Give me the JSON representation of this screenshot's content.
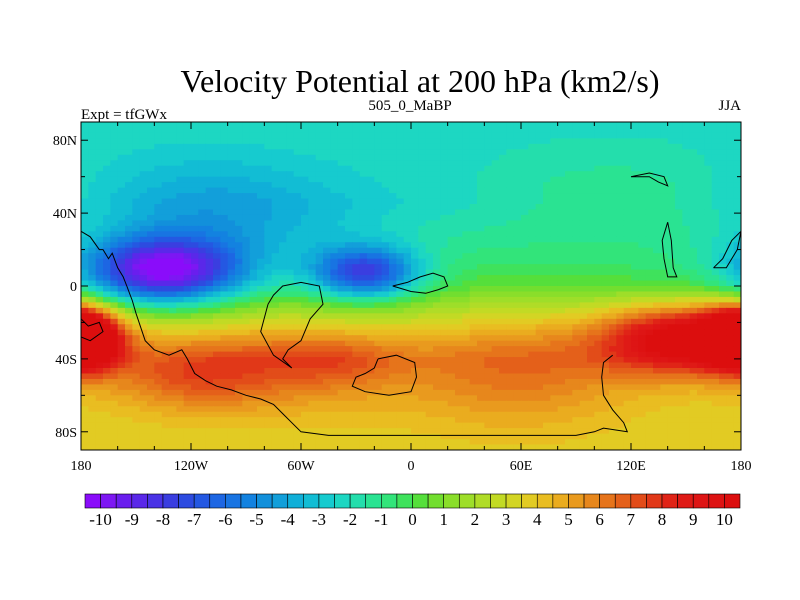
{
  "chart_data": {
    "type": "heatmap",
    "title": "Velocity Potential at 200 hPa (km2/s)",
    "left_string": "Expt = tfGWx",
    "center_string": "505_0_MaBP",
    "right_string": "JJA",
    "x_ticks": [
      {
        "value": -180,
        "label": "180"
      },
      {
        "value": -120,
        "label": "120W"
      },
      {
        "value": -60,
        "label": "60W"
      },
      {
        "value": 0,
        "label": "0"
      },
      {
        "value": 60,
        "label": "60E"
      },
      {
        "value": 120,
        "label": "120E"
      },
      {
        "value": 180,
        "label": "180"
      }
    ],
    "y_ticks": [
      {
        "value": 80,
        "label": "80N"
      },
      {
        "value": 40,
        "label": "40N"
      },
      {
        "value": 0,
        "label": "0"
      },
      {
        "value": -40,
        "label": "40S"
      },
      {
        "value": -80,
        "label": "80S"
      }
    ],
    "xlim": [
      -180,
      180
    ],
    "ylim": [
      -90,
      90
    ],
    "colorbar": {
      "min": -10.5,
      "max": 10.5,
      "step": 0.5,
      "labels": [
        "-10",
        "-9",
        "-8",
        "-7",
        "-6",
        "-5",
        "-4",
        "-3",
        "-2",
        "-1",
        "0",
        "1",
        "2",
        "3",
        "4",
        "5",
        "6",
        "7",
        "8",
        "9",
        "10"
      ],
      "colors": [
        "#8a0cfa",
        "#7d17f3",
        "#6a1eee",
        "#5a28e9",
        "#4a33e6",
        "#3a3ee0",
        "#2d4be0",
        "#2458e2",
        "#1d66e3",
        "#1874e2",
        "#1382e0",
        "#1290db",
        "#129fda",
        "#10afd8",
        "#12bdd4",
        "#16cbcf",
        "#1dd7c2",
        "#24deac",
        "#2ae392",
        "#32e47a",
        "#3fe25c",
        "#55df3b",
        "#72de2f",
        "#8ade2a",
        "#9ede29",
        "#b0dc27",
        "#c2da24",
        "#d3d524",
        "#e2cb23",
        "#e9bd21",
        "#eaac1f",
        "#e99a1e",
        "#e7871c",
        "#e6741b",
        "#e4601a",
        "#e24c19",
        "#e13818",
        "#e02417",
        "#df1a16",
        "#de1515",
        "#dd1212",
        "#dc0e0e"
      ]
    },
    "field_sources": [
      {
        "lon": -135,
        "lat": 8,
        "amp": -9.6,
        "sx": 30,
        "sy": 13
      },
      {
        "lon": -25,
        "lat": 7,
        "amp": -7.0,
        "sx": 20,
        "sy": 10
      },
      {
        "lon": -80,
        "lat": 32,
        "amp": -1.5,
        "sx": 50,
        "sy": 22
      },
      {
        "lon": -120,
        "lat": 45,
        "amp": -1.2,
        "sx": 40,
        "sy": 20
      },
      {
        "lon": 150,
        "lat": -28,
        "amp": 8.5,
        "sx": 32,
        "sy": 13
      },
      {
        "lon": -180,
        "lat": -28,
        "amp": 7.0,
        "sx": 14,
        "sy": 11
      },
      {
        "lon": 180,
        "lat": -28,
        "amp": 5.0,
        "sx": 12,
        "sy": 11
      },
      {
        "lon": 60,
        "lat": -40,
        "amp": 3.0,
        "sx": 45,
        "sy": 25
      },
      {
        "lon": -80,
        "lat": -40,
        "amp": 3.0,
        "sx": 55,
        "sy": 20
      },
      {
        "lon": -120,
        "lat": -50,
        "amp": 2.0,
        "sx": 30,
        "sy": 12
      },
      {
        "lon": -40,
        "lat": -40,
        "amp": 1.5,
        "sx": 25,
        "sy": 10
      },
      {
        "lon": 110,
        "lat": 50,
        "amp": 1.0,
        "sx": 40,
        "sy": 15
      }
    ],
    "field_base": {
      "north": -2.1,
      "south": 3.5,
      "equator": -0.3
    },
    "coast_lines": [
      [
        [
          -180,
          30
        ],
        [
          -175,
          27
        ],
        [
          -170,
          20
        ],
        [
          -168,
          20
        ],
        [
          -165,
          15
        ],
        [
          -163,
          18
        ],
        [
          -160,
          10
        ],
        [
          -157,
          5
        ],
        [
          -155,
          0
        ],
        [
          -152,
          -8
        ],
        [
          -150,
          -15
        ],
        [
          -145,
          -30
        ],
        [
          -140,
          -35
        ],
        [
          -132,
          -38
        ],
        [
          -125,
          -35
        ],
        [
          -122,
          -40
        ],
        [
          -118,
          -48
        ],
        [
          -112,
          -52
        ],
        [
          -106,
          -55
        ],
        [
          -98,
          -57
        ],
        [
          -90,
          -60
        ],
        [
          -82,
          -62
        ],
        [
          -75,
          -65
        ],
        [
          -70,
          -70
        ],
        [
          -65,
          -75
        ],
        [
          -60,
          -80
        ],
        [
          -45,
          -82
        ],
        [
          -20,
          -82
        ],
        [
          20,
          -82
        ],
        [
          60,
          -82
        ],
        [
          90,
          -82
        ],
        [
          100,
          -80
        ],
        [
          105,
          -78
        ],
        [
          118,
          -80
        ],
        [
          116,
          -75
        ],
        [
          110,
          -68
        ],
        [
          105,
          -60
        ],
        [
          104,
          -50
        ],
        [
          105,
          -42
        ],
        [
          110,
          -38
        ]
      ],
      [
        [
          -78,
          -10
        ],
        [
          -75,
          -5
        ],
        [
          -70,
          0
        ],
        [
          -60,
          2
        ],
        [
          -50,
          0
        ],
        [
          -48,
          -10
        ],
        [
          -55,
          -18
        ],
        [
          -60,
          -30
        ],
        [
          -67,
          -35
        ],
        [
          -70,
          -40
        ],
        [
          -65,
          -45
        ],
        [
          -75,
          -38
        ],
        [
          -82,
          -25
        ],
        [
          -78,
          -10
        ]
      ],
      [
        [
          -18,
          -40
        ],
        [
          -20,
          -45
        ],
        [
          -25,
          -48
        ],
        [
          -30,
          -50
        ],
        [
          -32,
          -55
        ],
        [
          -25,
          -58
        ],
        [
          -12,
          -60
        ],
        [
          0,
          -58
        ],
        [
          3,
          -50
        ],
        [
          2,
          -42
        ],
        [
          -8,
          -38
        ],
        [
          -18,
          -40
        ]
      ],
      [
        [
          -10,
          0
        ],
        [
          -2,
          2
        ],
        [
          5,
          5
        ],
        [
          12,
          7
        ],
        [
          18,
          5
        ],
        [
          20,
          0
        ],
        [
          15,
          -2
        ],
        [
          8,
          -4
        ],
        [
          0,
          -3
        ],
        [
          -10,
          0
        ]
      ],
      [
        [
          140,
          35
        ],
        [
          142,
          25
        ],
        [
          143,
          10
        ],
        [
          145,
          5
        ],
        [
          140,
          5
        ],
        [
          138,
          15
        ],
        [
          137,
          25
        ],
        [
          140,
          35
        ]
      ],
      [
        [
          120,
          60
        ],
        [
          130,
          60
        ],
        [
          135,
          57
        ],
        [
          140,
          55
        ],
        [
          138,
          60
        ],
        [
          130,
          62
        ],
        [
          120,
          60
        ]
      ],
      [
        [
          165,
          10
        ],
        [
          170,
          15
        ],
        [
          175,
          25
        ],
        [
          180,
          30
        ],
        [
          178,
          20
        ],
        [
          172,
          10
        ],
        [
          165,
          10
        ]
      ],
      [
        [
          -180,
          -18
        ],
        [
          -176,
          -22
        ],
        [
          -170,
          -20
        ],
        [
          -168,
          -25
        ],
        [
          -175,
          -30
        ],
        [
          -180,
          -28
        ]
      ]
    ]
  }
}
